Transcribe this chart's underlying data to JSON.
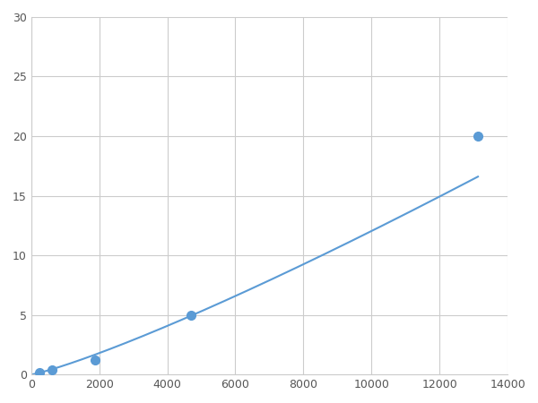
{
  "x": [
    250,
    625,
    1875,
    4688,
    13125
  ],
  "y": [
    0.2,
    0.4,
    1.2,
    5.0,
    20.0
  ],
  "line_color": "#5b9bd5",
  "marker_color": "#5b9bd5",
  "marker_size": 7,
  "line_width": 1.5,
  "xlim": [
    0,
    14000
  ],
  "ylim": [
    0,
    30
  ],
  "xticks": [
    0,
    2000,
    4000,
    6000,
    8000,
    10000,
    12000,
    14000
  ],
  "yticks": [
    0,
    5,
    10,
    15,
    20,
    25,
    30
  ],
  "grid_color": "#cccccc",
  "background_color": "#ffffff",
  "figsize": [
    6.0,
    4.5
  ],
  "dpi": 100
}
